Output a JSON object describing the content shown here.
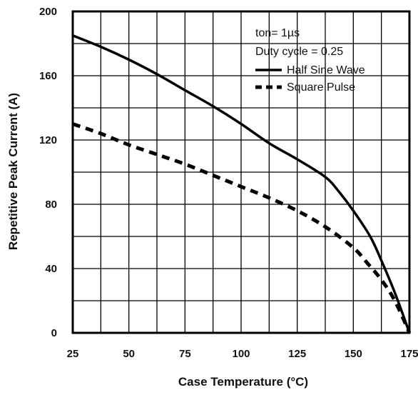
{
  "chart_data": {
    "type": "line",
    "title": "",
    "xlabel": "Case Temperature (°C)",
    "ylabel": "Repetitive Peak Current (A)",
    "xlim": [
      25,
      175
    ],
    "ylim": [
      0,
      200
    ],
    "x_ticks": [
      25,
      50,
      75,
      100,
      125,
      150,
      175
    ],
    "y_ticks": [
      0,
      40,
      80,
      120,
      160,
      200
    ],
    "grid": true,
    "annotations": [
      "ton= 1µs",
      "Duty cycle = 0.25"
    ],
    "legend_position": "top-right",
    "series": [
      {
        "name": "Half Sine Wave",
        "style": "solid",
        "x": [
          25,
          37.5,
          50,
          62.5,
          75,
          87.5,
          100,
          112.5,
          125,
          137.5,
          143.5,
          150,
          157.5,
          162.5,
          168.5,
          175
        ],
        "y": [
          185,
          178,
          170,
          161,
          151,
          141,
          130,
          118,
          108,
          97,
          88,
          76,
          60,
          45,
          25,
          0
        ]
      },
      {
        "name": "Square Pulse",
        "style": "dashed",
        "x": [
          25,
          37.5,
          50,
          62.5,
          75,
          87.5,
          100,
          112.5,
          125,
          137.5,
          150,
          156.5,
          162.5,
          168.5,
          175
        ],
        "y": [
          130,
          124,
          117,
          111,
          105,
          98,
          91,
          84,
          76,
          66,
          53,
          43,
          33,
          20,
          0
        ]
      }
    ]
  }
}
